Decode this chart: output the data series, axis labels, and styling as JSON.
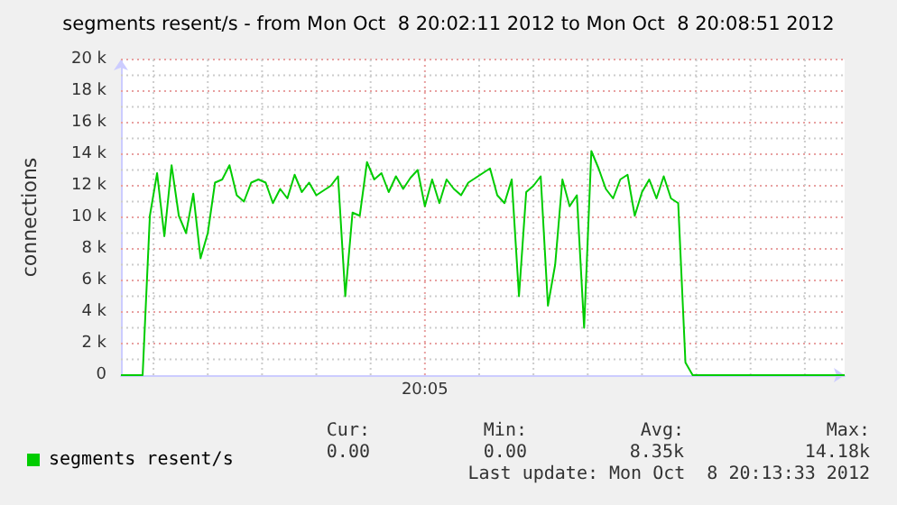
{
  "chart_data": {
    "type": "line",
    "title": "segments resent/s - from Mon Oct  8 20:02:11 2012 to Mon Oct  8 20:08:51 2012",
    "ylabel": "connections",
    "categories": [
      null,
      null,
      null,
      null,
      null,
      null,
      null,
      null,
      null,
      null,
      null,
      null,
      null,
      null,
      null,
      null,
      null,
      null,
      null,
      null,
      null,
      null,
      null,
      null,
      null,
      null,
      null,
      null,
      null,
      null,
      null,
      null,
      null,
      null,
      null,
      null,
      null,
      null,
      null,
      null,
      null,
      null,
      "20:05",
      null,
      null,
      null,
      null,
      null,
      null,
      null,
      null,
      null,
      null,
      null,
      null,
      null,
      null,
      null,
      null,
      null,
      null,
      null,
      null,
      null,
      null,
      null,
      null,
      null,
      null,
      null,
      null,
      null,
      null,
      null,
      null,
      null,
      null,
      null,
      null,
      null,
      null,
      null,
      null,
      null,
      null,
      null,
      null,
      null,
      null,
      null,
      null,
      null,
      null,
      null,
      null,
      null,
      null,
      null,
      null,
      null,
      null
    ],
    "ylim": [
      0,
      20000
    ],
    "yticks": [
      {
        "value": 0,
        "label": "0"
      },
      {
        "value": 1000,
        "label": null
      },
      {
        "value": 2000,
        "label": "2 k"
      },
      {
        "value": 3000,
        "label": null
      },
      {
        "value": 4000,
        "label": "4 k"
      },
      {
        "value": 5000,
        "label": null
      },
      {
        "value": 6000,
        "label": "6 k"
      },
      {
        "value": 7000,
        "label": null
      },
      {
        "value": 8000,
        "label": "8 k"
      },
      {
        "value": 9000,
        "label": null
      },
      {
        "value": 10000,
        "label": "10 k"
      },
      {
        "value": 11000,
        "label": null
      },
      {
        "value": 12000,
        "label": "12 k"
      },
      {
        "value": 13000,
        "label": null
      },
      {
        "value": 14000,
        "label": "14 k"
      },
      {
        "value": 15000,
        "label": null
      },
      {
        "value": 16000,
        "label": "16 k"
      },
      {
        "value": 17000,
        "label": null
      },
      {
        "value": 18000,
        "label": "18 k"
      },
      {
        "value": 19000,
        "label": null
      },
      {
        "value": 20000,
        "label": "20 k"
      }
    ],
    "grid": true,
    "legend": "bottom",
    "marker": "none",
    "annotations": [
      "Cur:",
      "Min:",
      "Avg:",
      "Max:",
      "0.00",
      "0.00",
      "8.35k",
      "14.18k",
      "Last update: Mon Oct  8 20:13:33 2012"
    ],
    "series": [
      {
        "name": "segments resent/s",
        "color": "#00cc00",
        "values": [
          0,
          0,
          0,
          0,
          10100,
          12800,
          8800,
          13300,
          10100,
          9000,
          11500,
          7400,
          9000,
          12200,
          12400,
          13300,
          11400,
          11000,
          12200,
          12400,
          12200,
          10900,
          11800,
          11200,
          12700,
          11600,
          12200,
          11400,
          11700,
          12000,
          12600,
          5000,
          10300,
          10100,
          13500,
          12400,
          12800,
          11600,
          12600,
          11800,
          12500,
          13000,
          10700,
          12400,
          10900,
          12400,
          11800,
          11400,
          12200,
          12500,
          12800,
          13100,
          11400,
          10900,
          12400,
          5000,
          11600,
          12000,
          12600,
          4400,
          7000,
          12400,
          10700,
          11400,
          3000,
          14200,
          13100,
          11800,
          11200,
          12400,
          12700,
          10100,
          11600,
          12400,
          11200,
          12600,
          11200,
          10900,
          800,
          0,
          0,
          0,
          0,
          0,
          0,
          0,
          0,
          0,
          0,
          0,
          0,
          0,
          0,
          0,
          0,
          0,
          0,
          0,
          0,
          0,
          0
        ]
      }
    ]
  }
}
